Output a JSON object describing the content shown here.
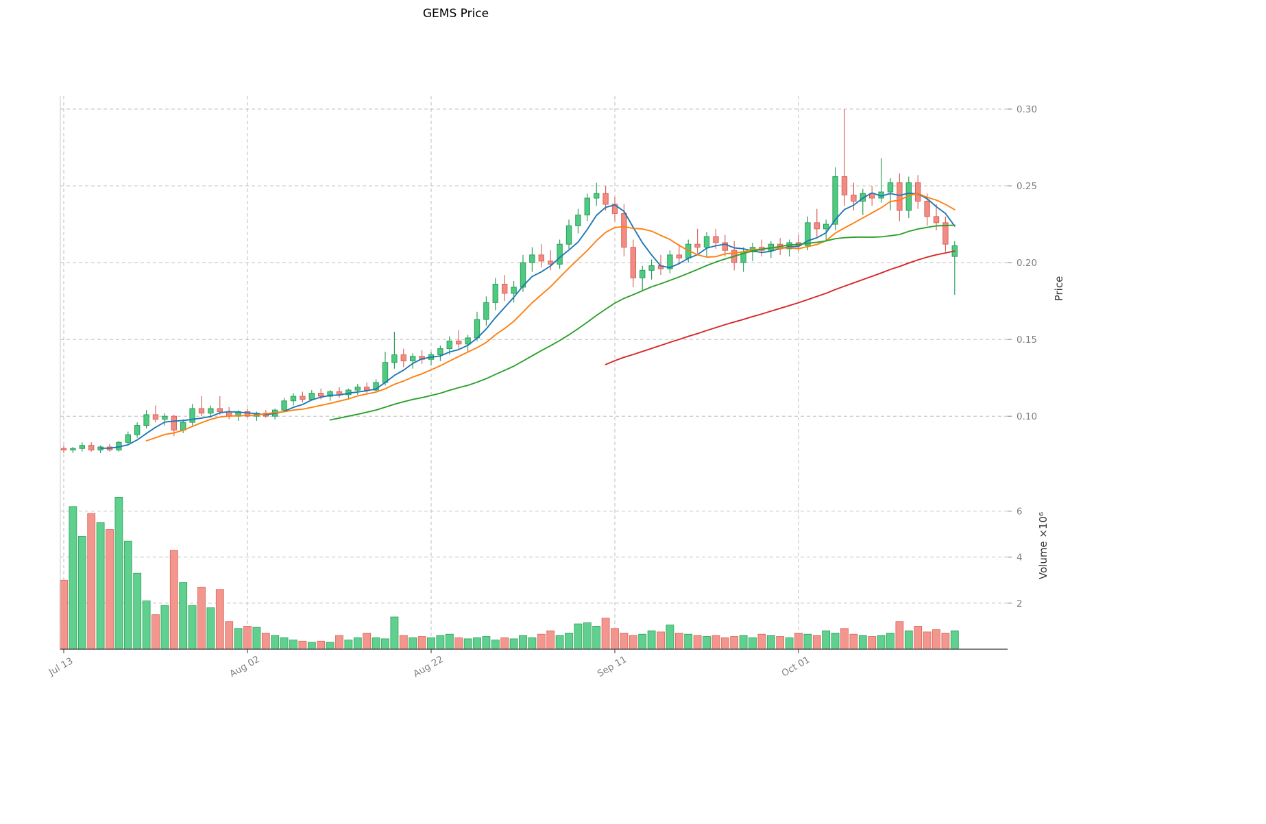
{
  "chart_data": {
    "type": "candlestick_with_volume",
    "title": "GEMS Price",
    "grid": true,
    "legend": "none",
    "price_axis": {
      "label": "Price",
      "ticks": [
        0.1,
        0.15,
        0.2,
        0.25,
        0.3
      ],
      "tick_labels": [
        "0.10",
        "0.15",
        "0.20",
        "0.25",
        "0.30"
      ],
      "ylim": [
        0.055,
        0.3085
      ]
    },
    "volume_axis": {
      "label": "Volume ×10⁶",
      "ticks": [
        2,
        4,
        6
      ],
      "tick_labels": [
        "2",
        "4",
        "6"
      ],
      "ylim": [
        0,
        7.0
      ]
    },
    "x_axis": {
      "tick_indices": [
        0,
        20,
        40,
        60,
        80
      ],
      "tick_labels": [
        "Jul 13",
        "Aug 02",
        "Aug 22",
        "Sep 11",
        "Oct 01"
      ]
    },
    "candles": {
      "open": [
        0.079,
        0.078,
        0.079,
        0.081,
        0.078,
        0.08,
        0.078,
        0.083,
        0.088,
        0.094,
        0.101,
        0.098,
        0.1,
        0.091,
        0.096,
        0.105,
        0.102,
        0.105,
        0.103,
        0.1,
        0.103,
        0.1,
        0.102,
        0.1,
        0.104,
        0.11,
        0.113,
        0.111,
        0.115,
        0.113,
        0.116,
        0.114,
        0.117,
        0.119,
        0.117,
        0.122,
        0.135,
        0.14,
        0.136,
        0.139,
        0.137,
        0.14,
        0.144,
        0.149,
        0.147,
        0.151,
        0.163,
        0.174,
        0.186,
        0.18,
        0.184,
        0.2,
        0.205,
        0.201,
        0.199,
        0.212,
        0.224,
        0.231,
        0.242,
        0.245,
        0.238,
        0.232,
        0.21,
        0.19,
        0.195,
        0.198,
        0.196,
        0.205,
        0.203,
        0.212,
        0.21,
        0.217,
        0.213,
        0.208,
        0.2,
        0.207,
        0.21,
        0.208,
        0.212,
        0.209,
        0.213,
        0.211,
        0.226,
        0.222,
        0.225,
        0.256,
        0.244,
        0.24,
        0.245,
        0.242,
        0.246,
        0.252,
        0.234,
        0.252,
        0.24,
        0.23,
        0.226,
        0.204
      ],
      "high": [
        0.081,
        0.08,
        0.083,
        0.083,
        0.081,
        0.082,
        0.084,
        0.09,
        0.096,
        0.104,
        0.107,
        0.102,
        0.101,
        0.098,
        0.108,
        0.113,
        0.107,
        0.113,
        0.106,
        0.104,
        0.105,
        0.103,
        0.104,
        0.105,
        0.112,
        0.115,
        0.116,
        0.117,
        0.118,
        0.117,
        0.119,
        0.118,
        0.121,
        0.122,
        0.124,
        0.142,
        0.155,
        0.144,
        0.141,
        0.143,
        0.142,
        0.146,
        0.152,
        0.156,
        0.153,
        0.168,
        0.178,
        0.19,
        0.192,
        0.188,
        0.205,
        0.21,
        0.212,
        0.208,
        0.215,
        0.228,
        0.235,
        0.245,
        0.252,
        0.25,
        0.243,
        0.238,
        0.215,
        0.198,
        0.202,
        0.205,
        0.208,
        0.212,
        0.215,
        0.222,
        0.22,
        0.222,
        0.218,
        0.214,
        0.21,
        0.213,
        0.215,
        0.214,
        0.216,
        0.215,
        0.218,
        0.23,
        0.235,
        0.228,
        0.262,
        0.3,
        0.252,
        0.248,
        0.25,
        0.268,
        0.255,
        0.258,
        0.256,
        0.257,
        0.245,
        0.238,
        0.23,
        0.214
      ],
      "low": [
        0.076,
        0.076,
        0.077,
        0.077,
        0.076,
        0.077,
        0.077,
        0.082,
        0.086,
        0.092,
        0.096,
        0.094,
        0.087,
        0.089,
        0.094,
        0.1,
        0.099,
        0.101,
        0.098,
        0.097,
        0.099,
        0.097,
        0.099,
        0.098,
        0.103,
        0.107,
        0.109,
        0.11,
        0.111,
        0.11,
        0.112,
        0.111,
        0.114,
        0.115,
        0.116,
        0.12,
        0.131,
        0.132,
        0.131,
        0.134,
        0.133,
        0.136,
        0.14,
        0.144,
        0.142,
        0.149,
        0.159,
        0.169,
        0.175,
        0.174,
        0.181,
        0.194,
        0.197,
        0.195,
        0.196,
        0.209,
        0.219,
        0.227,
        0.237,
        0.234,
        0.227,
        0.204,
        0.184,
        0.182,
        0.189,
        0.192,
        0.193,
        0.199,
        0.2,
        0.206,
        0.204,
        0.209,
        0.204,
        0.195,
        0.194,
        0.201,
        0.204,
        0.203,
        0.205,
        0.204,
        0.207,
        0.208,
        0.217,
        0.214,
        0.221,
        0.237,
        0.234,
        0.231,
        0.237,
        0.239,
        0.234,
        0.227,
        0.229,
        0.235,
        0.224,
        0.221,
        0.207,
        0.179
      ],
      "close": [
        0.078,
        0.079,
        0.081,
        0.078,
        0.08,
        0.078,
        0.083,
        0.088,
        0.094,
        0.101,
        0.098,
        0.1,
        0.091,
        0.096,
        0.105,
        0.102,
        0.105,
        0.103,
        0.1,
        0.103,
        0.1,
        0.102,
        0.1,
        0.104,
        0.11,
        0.113,
        0.111,
        0.115,
        0.113,
        0.116,
        0.114,
        0.117,
        0.119,
        0.117,
        0.122,
        0.135,
        0.14,
        0.136,
        0.139,
        0.137,
        0.14,
        0.144,
        0.149,
        0.147,
        0.151,
        0.163,
        0.174,
        0.186,
        0.18,
        0.184,
        0.2,
        0.205,
        0.201,
        0.199,
        0.212,
        0.224,
        0.231,
        0.242,
        0.245,
        0.238,
        0.232,
        0.21,
        0.19,
        0.195,
        0.198,
        0.196,
        0.205,
        0.203,
        0.212,
        0.21,
        0.217,
        0.213,
        0.208,
        0.2,
        0.207,
        0.21,
        0.208,
        0.212,
        0.209,
        0.213,
        0.211,
        0.226,
        0.222,
        0.225,
        0.256,
        0.244,
        0.24,
        0.245,
        0.242,
        0.246,
        0.252,
        0.234,
        0.252,
        0.24,
        0.23,
        0.226,
        0.212,
        0.211
      ]
    },
    "volume": [
      3.0,
      6.2,
      4.9,
      5.9,
      5.5,
      5.2,
      6.6,
      4.7,
      3.3,
      2.1,
      1.5,
      1.9,
      4.3,
      2.9,
      1.9,
      2.7,
      1.8,
      2.6,
      1.2,
      0.9,
      1.0,
      0.95,
      0.7,
      0.6,
      0.5,
      0.4,
      0.35,
      0.3,
      0.35,
      0.3,
      0.6,
      0.4,
      0.5,
      0.7,
      0.5,
      0.45,
      1.4,
      0.6,
      0.5,
      0.55,
      0.5,
      0.6,
      0.65,
      0.5,
      0.45,
      0.5,
      0.55,
      0.4,
      0.5,
      0.45,
      0.6,
      0.5,
      0.65,
      0.8,
      0.6,
      0.7,
      1.1,
      1.15,
      1.0,
      1.35,
      0.9,
      0.7,
      0.6,
      0.65,
      0.8,
      0.75,
      1.05,
      0.7,
      0.65,
      0.6,
      0.55,
      0.6,
      0.5,
      0.55,
      0.6,
      0.5,
      0.65,
      0.6,
      0.55,
      0.5,
      0.7,
      0.65,
      0.6,
      0.8,
      0.7,
      0.9,
      0.65,
      0.6,
      0.55,
      0.6,
      0.7,
      1.2,
      0.8,
      1.0,
      0.75,
      0.85,
      0.7,
      0.8
    ],
    "moving_averages": [
      {
        "name": "MA5",
        "window": 5,
        "color": "#1f77b4"
      },
      {
        "name": "MA10",
        "window": 10,
        "color": "#ff7f0e"
      },
      {
        "name": "MA30",
        "window": 30,
        "color": "#2ca02c"
      },
      {
        "name": "MA60",
        "window": 60,
        "color": "#d62728"
      }
    ],
    "colors": {
      "up": "#4ecb81",
      "up_edge": "#2e9e5b",
      "down": "#f28b82",
      "down_edge": "#d9655b",
      "grid": "#b5b5b5",
      "tick_text": "#7f7f7f",
      "spine_bottom": "#333333",
      "spine_left": "#c8c8c8"
    }
  }
}
